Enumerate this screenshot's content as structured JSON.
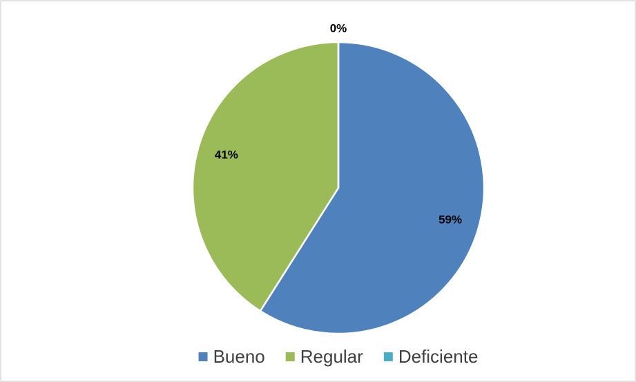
{
  "chart_data": {
    "type": "pie",
    "categories": [
      "Bueno",
      "Regular",
      "Deficiente"
    ],
    "values": [
      59,
      41,
      0
    ],
    "value_labels": [
      "59%",
      "41%",
      "0%"
    ],
    "colors": [
      "#4f81bd",
      "#9bbb59",
      "#4bacc6"
    ],
    "legend": "bottom"
  }
}
